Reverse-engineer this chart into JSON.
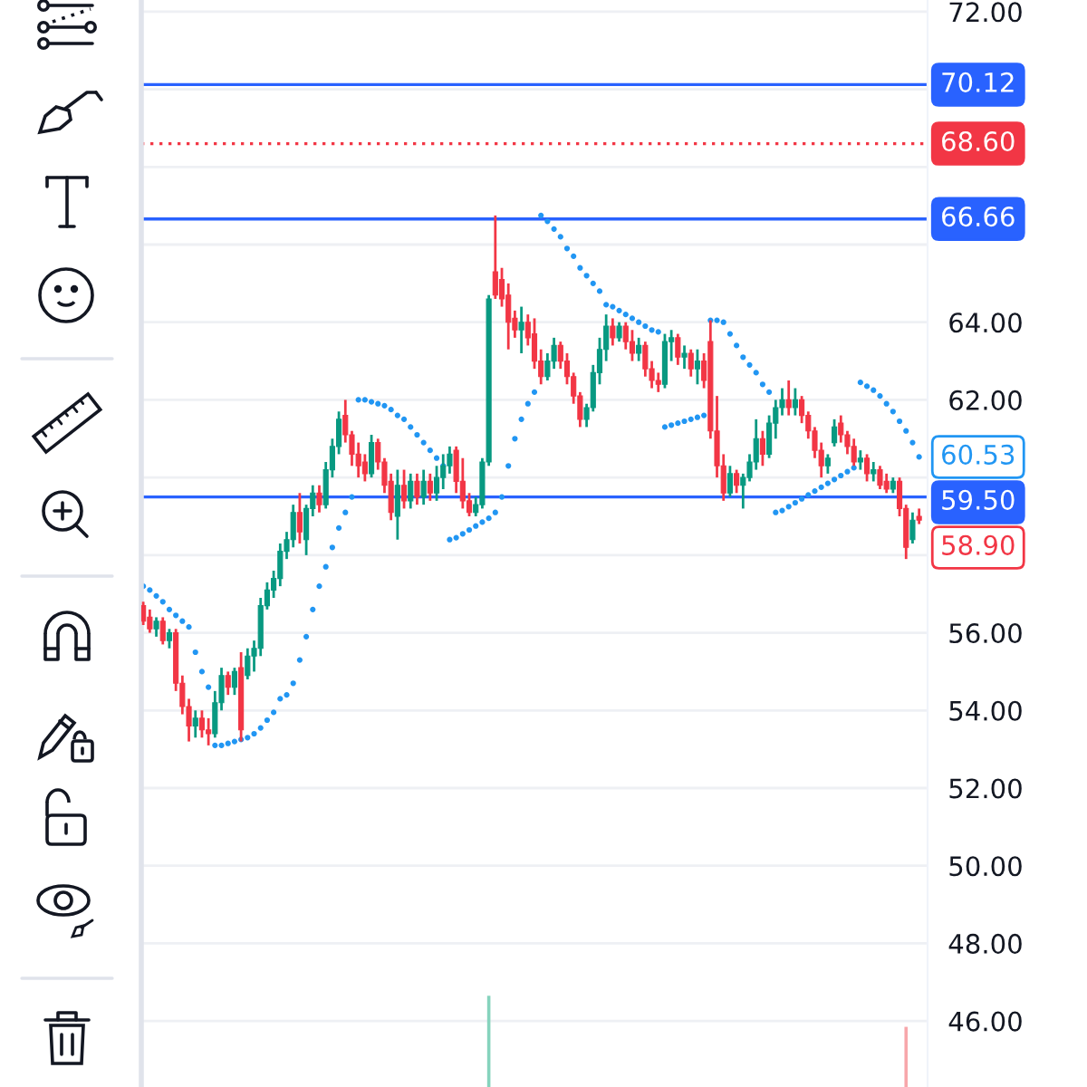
{
  "chart_data": {
    "type": "candlestick",
    "categories": [
      null,
      null,
      null,
      null,
      null,
      null,
      null,
      null,
      null,
      null,
      null,
      null,
      null,
      null,
      null,
      null,
      null,
      null,
      null,
      null,
      null,
      null,
      null,
      null,
      null,
      null,
      null,
      null,
      null,
      null,
      null,
      null,
      null,
      null,
      null,
      null,
      null,
      null,
      null,
      null,
      null,
      null,
      null,
      null,
      null,
      null,
      null,
      null,
      null,
      null,
      null,
      null,
      null,
      null,
      null,
      null,
      null,
      null,
      null,
      null,
      null,
      null,
      null,
      null,
      null,
      null,
      null,
      null,
      null,
      null,
      null,
      null,
      null,
      null,
      null,
      null,
      null,
      null,
      null,
      null,
      null,
      null,
      null,
      null,
      null,
      null,
      null,
      null,
      null,
      null,
      null,
      null,
      null,
      null,
      null,
      null,
      null,
      null,
      null,
      null,
      null,
      null,
      null,
      null,
      null,
      null,
      null,
      null,
      null,
      null,
      null,
      null,
      null,
      null,
      null,
      null,
      null,
      null,
      null,
      null
    ],
    "ohlc": [
      [
        56.7,
        56.8,
        56.2,
        56.3
      ],
      [
        56.4,
        56.6,
        56.0,
        56.1
      ],
      [
        56.1,
        56.4,
        55.9,
        56.3
      ],
      [
        56.3,
        56.4,
        55.7,
        55.8
      ],
      [
        55.8,
        56.1,
        55.6,
        56.0
      ],
      [
        56.0,
        56.1,
        54.5,
        54.7
      ],
      [
        54.7,
        54.9,
        53.9,
        54.1
      ],
      [
        54.1,
        54.3,
        53.2,
        53.6
      ],
      [
        53.6,
        54.0,
        53.3,
        53.8
      ],
      [
        53.8,
        54.0,
        53.3,
        53.5
      ],
      [
        53.5,
        53.8,
        53.1,
        53.4
      ],
      [
        53.4,
        54.5,
        53.3,
        54.2
      ],
      [
        54.2,
        55.1,
        54.0,
        54.9
      ],
      [
        54.9,
        55.0,
        54.4,
        54.6
      ],
      [
        54.6,
        55.1,
        54.4,
        55.0
      ],
      [
        55.1,
        55.5,
        53.2,
        53.5
      ],
      [
        54.9,
        55.6,
        54.8,
        55.4
      ],
      [
        55.4,
        55.8,
        55.0,
        55.6
      ],
      [
        55.6,
        56.9,
        55.4,
        56.7
      ],
      [
        56.7,
        57.3,
        56.6,
        57.1
      ],
      [
        57.1,
        57.6,
        56.9,
        57.4
      ],
      [
        57.4,
        58.3,
        57.2,
        58.1
      ],
      [
        58.1,
        58.6,
        57.9,
        58.4
      ],
      [
        58.4,
        59.3,
        58.2,
        59.1
      ],
      [
        59.1,
        59.6,
        58.3,
        58.6
      ],
      [
        58.4,
        59.3,
        58.0,
        59.2
      ],
      [
        59.2,
        59.8,
        59.0,
        59.6
      ],
      [
        59.6,
        59.8,
        59.1,
        59.3
      ],
      [
        59.3,
        60.4,
        59.2,
        60.2
      ],
      [
        60.2,
        61.0,
        60.0,
        60.8
      ],
      [
        60.8,
        61.7,
        60.6,
        61.5
      ],
      [
        61.6,
        62.0,
        60.9,
        61.1
      ],
      [
        61.1,
        61.2,
        60.3,
        60.6
      ],
      [
        60.6,
        60.9,
        60.0,
        60.3
      ],
      [
        60.4,
        60.6,
        59.9,
        60.1
      ],
      [
        60.1,
        61.1,
        60.0,
        60.9
      ],
      [
        60.9,
        61.0,
        60.2,
        60.4
      ],
      [
        60.4,
        60.5,
        59.6,
        59.8
      ],
      [
        59.9,
        60.1,
        58.9,
        59.1
      ],
      [
        59.0,
        60.2,
        58.4,
        59.8
      ],
      [
        59.8,
        60.2,
        59.2,
        59.4
      ],
      [
        59.4,
        60.1,
        59.2,
        59.9
      ],
      [
        59.9,
        60.1,
        59.3,
        59.5
      ],
      [
        59.5,
        60.2,
        59.3,
        59.9
      ],
      [
        59.9,
        60.1,
        59.4,
        59.6
      ],
      [
        59.6,
        60.3,
        59.4,
        60.0
      ],
      [
        60.0,
        60.6,
        59.7,
        60.3
      ],
      [
        60.3,
        60.8,
        60.1,
        60.6
      ],
      [
        60.7,
        60.8,
        59.6,
        59.9
      ],
      [
        59.9,
        60.5,
        59.2,
        59.4
      ],
      [
        59.4,
        59.6,
        59.0,
        59.1
      ],
      [
        59.1,
        59.5,
        59.0,
        59.3
      ],
      [
        59.3,
        60.5,
        59.2,
        60.4
      ],
      [
        60.4,
        64.7,
        60.3,
        64.6
      ],
      [
        65.3,
        66.75,
        64.6,
        64.7
      ],
      [
        65.1,
        65.4,
        64.4,
        64.6
      ],
      [
        64.7,
        65.0,
        63.3,
        64.0
      ],
      [
        64.1,
        64.3,
        63.6,
        63.8
      ],
      [
        63.8,
        64.4,
        63.2,
        64.0
      ],
      [
        64.0,
        64.2,
        63.4,
        63.6
      ],
      [
        63.7,
        64.1,
        62.8,
        63.0
      ],
      [
        63.0,
        63.3,
        62.4,
        62.6
      ],
      [
        62.6,
        63.2,
        62.5,
        63.0
      ],
      [
        63.0,
        63.6,
        62.8,
        63.4
      ],
      [
        63.4,
        63.5,
        62.8,
        63.0
      ],
      [
        63.0,
        63.2,
        62.4,
        62.6
      ],
      [
        62.6,
        62.7,
        61.9,
        62.1
      ],
      [
        62.1,
        62.2,
        61.3,
        61.5
      ],
      [
        61.5,
        61.9,
        61.3,
        61.8
      ],
      [
        61.8,
        62.9,
        61.7,
        62.7
      ],
      [
        62.7,
        63.6,
        62.4,
        63.3
      ],
      [
        63.3,
        64.2,
        63.0,
        63.9
      ],
      [
        63.9,
        64.1,
        63.4,
        63.6
      ],
      [
        63.6,
        64.0,
        63.5,
        63.9
      ],
      [
        63.9,
        64.0,
        63.3,
        63.5
      ],
      [
        63.5,
        63.8,
        63.0,
        63.2
      ],
      [
        63.2,
        63.6,
        63.0,
        63.4
      ],
      [
        63.4,
        63.5,
        62.6,
        62.8
      ],
      [
        62.8,
        63.0,
        62.3,
        62.5
      ],
      [
        62.5,
        62.7,
        62.2,
        62.4
      ],
      [
        62.4,
        63.7,
        62.3,
        63.5
      ],
      [
        63.5,
        63.8,
        63.0,
        63.6
      ],
      [
        63.6,
        63.7,
        62.9,
        63.1
      ],
      [
        63.1,
        63.4,
        62.8,
        63.2
      ],
      [
        63.2,
        63.3,
        62.6,
        62.8
      ],
      [
        62.8,
        63.3,
        62.4,
        63.0
      ],
      [
        63.0,
        63.2,
        62.3,
        62.5
      ],
      [
        63.5,
        64.05,
        61.0,
        61.2
      ],
      [
        61.2,
        62.1,
        60.0,
        60.3
      ],
      [
        60.3,
        60.6,
        59.4,
        59.6
      ],
      [
        59.6,
        60.3,
        59.5,
        60.1
      ],
      [
        60.1,
        60.2,
        59.6,
        59.8
      ],
      [
        59.8,
        60.1,
        59.2,
        60.0
      ],
      [
        60.0,
        60.6,
        59.9,
        60.4
      ],
      [
        60.4,
        61.5,
        60.2,
        61.0
      ],
      [
        61.0,
        61.2,
        60.3,
        60.6
      ],
      [
        60.6,
        61.6,
        60.5,
        61.4
      ],
      [
        61.4,
        62.0,
        61.0,
        61.8
      ],
      [
        61.8,
        62.3,
        61.6,
        62.0
      ],
      [
        62.0,
        62.5,
        61.6,
        61.8
      ],
      [
        61.8,
        62.3,
        61.6,
        62.0
      ],
      [
        62.0,
        62.1,
        61.4,
        61.6
      ],
      [
        61.6,
        61.7,
        61.0,
        61.2
      ],
      [
        61.2,
        61.3,
        60.5,
        60.7
      ],
      [
        60.7,
        60.9,
        60.0,
        60.3
      ],
      [
        60.3,
        60.6,
        60.1,
        60.5
      ],
      [
        60.9,
        61.5,
        60.8,
        61.3
      ],
      [
        61.4,
        61.6,
        60.9,
        61.1
      ],
      [
        61.1,
        61.2,
        60.6,
        60.8
      ],
      [
        60.8,
        61.0,
        60.3,
        60.4
      ],
      [
        60.4,
        60.7,
        60.2,
        60.5
      ],
      [
        60.5,
        60.6,
        59.9,
        60.1
      ],
      [
        60.1,
        60.4,
        59.9,
        60.2
      ],
      [
        60.2,
        60.3,
        59.7,
        59.8
      ],
      [
        59.9,
        60.1,
        59.6,
        59.7
      ],
      [
        59.7,
        60.0,
        59.6,
        59.9
      ],
      [
        59.9,
        60.0,
        59.0,
        59.2
      ],
      [
        59.2,
        59.3,
        57.9,
        58.2
      ],
      [
        58.4,
        59.1,
        58.3,
        58.9
      ],
      [
        59.0,
        59.2,
        58.8,
        58.9
      ]
    ],
    "colors": [
      "#f23645",
      "#f23645",
      "#089981",
      "#f23645",
      "#089981",
      "#f23645",
      "#f23645",
      "#f23645",
      "#089981",
      "#f23645",
      "#f23645",
      "#089981",
      "#089981",
      "#f23645",
      "#089981",
      "#f23645",
      "#089981",
      "#089981",
      "#089981",
      "#089981",
      "#089981",
      "#089981",
      "#089981",
      "#089981",
      "#f23645",
      "#089981",
      "#089981",
      "#f23645",
      "#089981",
      "#089981",
      "#089981",
      "#f23645",
      "#f23645",
      "#f23645",
      "#f23645",
      "#089981",
      "#f23645",
      "#f23645",
      "#f23645",
      "#089981",
      "#f23645",
      "#089981",
      "#f23645",
      "#089981",
      "#f23645",
      "#089981",
      "#089981",
      "#089981",
      "#f23645",
      "#f23645",
      "#f23645",
      "#089981",
      "#089981",
      "#089981",
      "#f23645",
      "#f23645",
      "#f23645",
      "#f23645",
      "#089981",
      "#f23645",
      "#f23645",
      "#f23645",
      "#089981",
      "#089981",
      "#f23645",
      "#f23645",
      "#f23645",
      "#f23645",
      "#089981",
      "#089981",
      "#089981",
      "#089981",
      "#f23645",
      "#089981",
      "#f23645",
      "#f23645",
      "#089981",
      "#f23645",
      "#f23645",
      "#f23645",
      "#089981",
      "#089981",
      "#f23645",
      "#089981",
      "#f23645",
      "#089981",
      "#f23645",
      "#f23645",
      "#f23645",
      "#f23645",
      "#089981",
      "#f23645",
      "#089981",
      "#089981",
      "#089981",
      "#f23645",
      "#089981",
      "#089981",
      "#089981",
      "#f23645",
      "#089981",
      "#f23645",
      "#f23645",
      "#f23645",
      "#f23645",
      "#089981",
      "#089981",
      "#f23645",
      "#f23645",
      "#f23645",
      "#089981",
      "#f23645",
      "#089981",
      "#f23645",
      "#f23645",
      "#089981",
      "#f23645",
      "#f23645",
      "#089981",
      "#f23645"
    ],
    "value_labels": [
      null,
      null,
      null,
      null,
      null,
      null,
      null,
      null,
      null,
      null,
      null,
      null,
      null,
      null,
      null,
      null,
      null,
      null,
      null,
      null,
      null,
      null,
      null,
      null,
      null,
      null,
      null,
      null,
      null,
      null,
      null,
      null,
      null,
      null,
      null,
      null,
      null,
      null,
      null,
      null,
      null,
      null,
      null,
      null,
      null,
      null,
      null,
      null,
      null,
      null,
      null,
      null,
      null,
      null,
      null,
      null,
      null,
      null,
      null,
      null,
      null,
      null,
      null,
      null,
      null,
      null,
      null,
      null,
      null,
      null,
      null,
      null,
      null,
      null,
      null,
      null,
      null,
      null,
      null,
      null,
      null,
      null,
      null,
      null,
      null,
      null,
      null,
      null,
      null,
      null,
      null,
      null,
      null,
      null,
      null,
      null,
      null,
      null,
      null,
      null,
      null,
      null,
      null,
      null,
      null,
      null,
      null,
      null,
      null,
      null,
      null,
      null,
      null,
      null,
      null,
      null,
      null,
      null,
      null,
      "58.90"
    ],
    "series": [
      {
        "type": "scatter",
        "color": "#2196f3",
        "marker": "circle",
        "values": [
          57.2,
          57.1,
          56.95,
          56.8,
          56.6,
          56.45,
          56.3,
          56.15,
          55.5,
          55.0,
          54.6,
          53.1,
          53.1,
          53.15,
          53.2,
          53.25,
          53.3,
          53.4,
          53.55,
          53.75,
          53.95,
          54.3,
          54.4,
          54.7,
          55.3,
          55.9,
          56.6,
          57.2,
          57.7,
          58.2,
          58.7,
          59.1,
          59.5,
          62.0,
          62.0,
          61.95,
          61.9,
          61.85,
          61.75,
          61.6,
          61.5,
          61.3,
          61.1,
          60.9,
          60.7,
          60.5,
          60.3,
          58.4,
          58.45,
          58.55,
          58.65,
          58.75,
          58.85,
          58.95,
          59.1,
          59.5,
          60.3,
          61.0,
          61.5,
          61.9,
          62.2,
          66.75,
          66.6,
          66.4,
          66.2,
          65.9,
          65.7,
          65.4,
          65.2,
          65.0,
          64.8,
          64.45,
          64.4,
          64.3,
          64.2,
          64.1,
          64.0,
          63.9,
          63.8,
          63.75,
          61.3,
          61.35,
          61.4,
          61.45,
          61.5,
          61.55,
          61.6,
          64.05,
          64.05,
          64.0,
          63.7,
          63.4,
          63.1,
          62.9,
          62.7,
          62.4,
          62.2,
          59.1,
          59.15,
          59.25,
          59.35,
          59.45,
          59.55,
          59.65,
          59.75,
          59.85,
          59.95,
          60.05,
          60.15,
          60.25,
          62.45,
          62.35,
          62.25,
          62.1,
          61.9,
          61.7,
          61.45,
          61.2,
          60.9,
          60.53
        ],
        "value_labels": [
          null,
          null,
          null,
          null,
          null,
          null,
          null,
          null,
          null,
          null,
          null,
          null,
          null,
          null,
          null,
          null,
          null,
          null,
          null,
          null,
          null,
          null,
          null,
          null,
          null,
          null,
          null,
          null,
          null,
          null,
          null,
          null,
          null,
          null,
          null,
          null,
          null,
          null,
          null,
          null,
          null,
          null,
          null,
          null,
          null,
          null,
          null,
          null,
          null,
          null,
          null,
          null,
          null,
          null,
          null,
          null,
          null,
          null,
          null,
          null,
          null,
          null,
          null,
          null,
          null,
          null,
          null,
          null,
          null,
          null,
          null,
          null,
          null,
          null,
          null,
          null,
          null,
          null,
          null,
          null,
          null,
          null,
          null,
          null,
          null,
          null,
          null,
          null,
          null,
          null,
          null,
          null,
          null,
          null,
          null,
          null,
          null,
          null,
          null,
          null,
          null,
          null,
          null,
          null,
          null,
          null,
          null,
          null,
          null,
          null,
          null,
          null,
          null,
          null,
          null,
          null,
          null,
          null,
          null,
          "60.53"
        ]
      },
      {
        "type": "bar",
        "values": [
          null,
          null,
          null,
          null,
          null,
          null,
          null,
          null,
          null,
          null,
          null,
          null,
          null,
          null,
          null,
          null,
          null,
          null,
          null,
          null,
          null,
          null,
          null,
          null,
          null,
          null,
          null,
          null,
          null,
          null,
          null,
          null,
          null,
          null,
          null,
          null,
          null,
          null,
          null,
          null,
          null,
          null,
          null,
          null,
          null,
          null,
          null,
          null,
          null,
          null,
          null,
          null,
          null,
          2.35,
          null,
          null,
          null,
          null,
          null,
          null,
          null,
          null,
          null,
          null,
          null,
          null,
          null,
          null,
          null,
          null,
          null,
          null,
          null,
          null,
          null,
          null,
          null,
          null,
          null,
          null,
          null,
          null,
          null,
          null,
          null,
          null,
          null,
          null,
          null,
          null,
          null,
          null,
          null,
          null,
          null,
          null,
          null,
          null,
          null,
          null,
          null,
          null,
          null,
          null,
          null,
          null,
          null,
          null,
          null,
          null,
          null,
          null,
          null,
          null,
          null,
          null,
          null,
          1.55,
          null,
          null
        ],
        "base": [
          null,
          null,
          null,
          null,
          null,
          null,
          null,
          null,
          null,
          null,
          null,
          null,
          null,
          null,
          null,
          null,
          null,
          null,
          null,
          null,
          null,
          null,
          null,
          null,
          null,
          null,
          null,
          null,
          null,
          null,
          null,
          null,
          null,
          null,
          null,
          null,
          null,
          null,
          null,
          null,
          null,
          null,
          null,
          null,
          null,
          null,
          null,
          null,
          null,
          null,
          null,
          null,
          null,
          44.3,
          null,
          null,
          null,
          null,
          null,
          null,
          null,
          null,
          null,
          null,
          null,
          null,
          null,
          null,
          null,
          null,
          null,
          null,
          null,
          null,
          null,
          null,
          null,
          null,
          null,
          null,
          null,
          null,
          null,
          null,
          null,
          null,
          null,
          null,
          null,
          null,
          null,
          null,
          null,
          null,
          null,
          null,
          null,
          null,
          null,
          null,
          null,
          null,
          null,
          null,
          null,
          null,
          null,
          null,
          null,
          null,
          null,
          null,
          null,
          null,
          null,
          null,
          null,
          44.3,
          null,
          null
        ],
        "colors": [
          null,
          null,
          null,
          null,
          null,
          null,
          null,
          null,
          null,
          null,
          null,
          null,
          null,
          null,
          null,
          null,
          null,
          null,
          null,
          null,
          null,
          null,
          null,
          null,
          null,
          null,
          null,
          null,
          null,
          null,
          null,
          null,
          null,
          null,
          null,
          null,
          null,
          null,
          null,
          null,
          null,
          null,
          null,
          null,
          null,
          null,
          null,
          null,
          null,
          null,
          null,
          null,
          null,
          "#86d3bd",
          null,
          null,
          null,
          null,
          null,
          null,
          null,
          null,
          null,
          null,
          null,
          null,
          null,
          null,
          null,
          null,
          null,
          null,
          null,
          null,
          null,
          null,
          null,
          null,
          null,
          null,
          null,
          null,
          null,
          null,
          null,
          null,
          null,
          null,
          null,
          null,
          null,
          null,
          null,
          null,
          null,
          null,
          null,
          null,
          null,
          null,
          null,
          null,
          null,
          null,
          null,
          null,
          null,
          null,
          null,
          null,
          null,
          null,
          null,
          null,
          null,
          null,
          null,
          "#f7a7ab",
          null,
          null
        ]
      }
    ],
    "ylim": [
      44.3,
      72.3
    ],
    "yticks": [
      {
        "value": 46,
        "label": "46.00"
      },
      {
        "value": 48,
        "label": "48.00"
      },
      {
        "value": 50,
        "label": "50.00"
      },
      {
        "value": 52,
        "label": "52.00"
      },
      {
        "value": 54,
        "label": "54.00"
      },
      {
        "value": 56,
        "label": "56.00"
      },
      {
        "value": 58,
        "label": null
      },
      {
        "value": 60,
        "label": null
      },
      {
        "value": 62,
        "label": "62.00"
      },
      {
        "value": 64,
        "label": "64.00"
      },
      {
        "value": 66,
        "label": null
      },
      {
        "value": 68,
        "label": null
      },
      {
        "value": 70,
        "label": null
      },
      {
        "value": 72,
        "label": "72.00"
      }
    ],
    "grid": "y",
    "tick_labels": "y",
    "ref_lines": [
      {
        "axis": "y",
        "value": 70.12,
        "label": "70.12",
        "color": "#2962ff",
        "line_style": "solid"
      },
      {
        "axis": "y",
        "value": 68.6,
        "label": "68.60",
        "color": "#f23645",
        "line_style": "dotted"
      },
      {
        "axis": "y",
        "value": 66.66,
        "label": "66.66",
        "color": "#2962ff",
        "line_style": "solid"
      },
      {
        "axis": "y",
        "value": 59.5,
        "label": "59.50",
        "color": "#2962ff",
        "line_style": "solid"
      }
    ]
  }
}
